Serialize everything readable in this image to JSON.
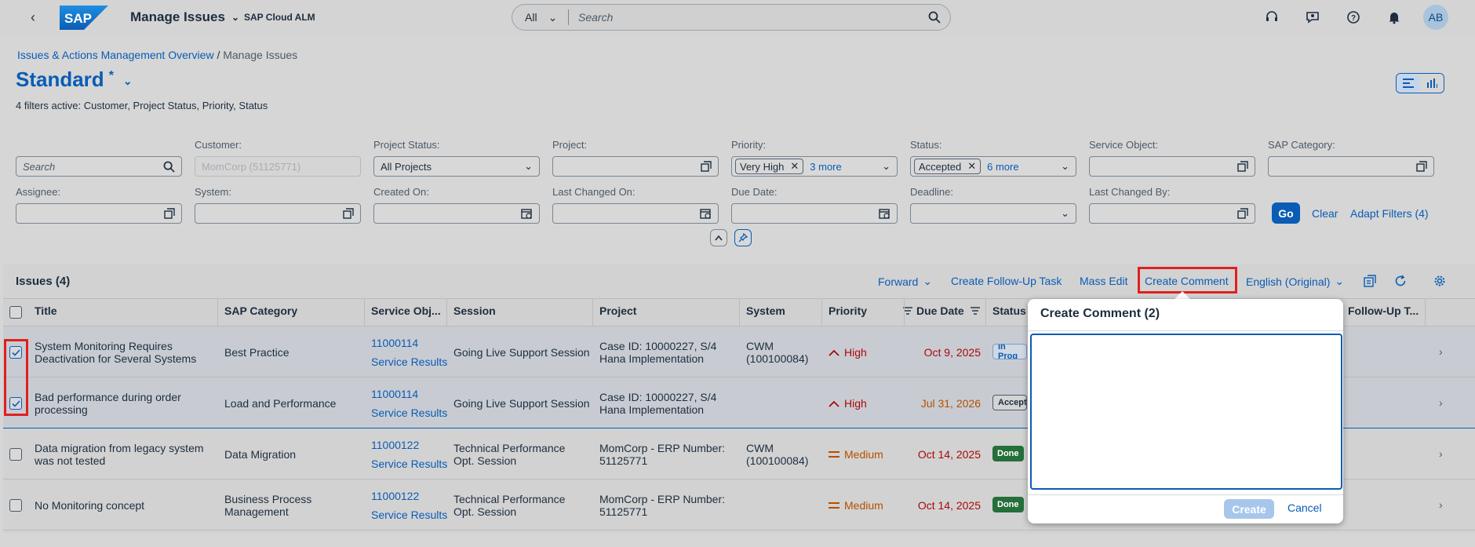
{
  "shell": {
    "logo": "SAP",
    "app_title": "Manage Issues",
    "subtitle": "SAP Cloud ALM",
    "search_scope": "All",
    "search_placeholder": "Search",
    "avatar_initials": "AB",
    "icons": [
      "headset-icon",
      "feedback-icon",
      "help-icon",
      "notifications-icon"
    ]
  },
  "breadcrumb": {
    "parent": "Issues & Actions Management Overview",
    "separator": "/",
    "current": "Manage Issues"
  },
  "variant": {
    "name": "Standard",
    "modified_marker": "*"
  },
  "filters_active_text": "4 filters active: Customer, Project Status, Priority, Status",
  "filters": {
    "search_placeholder": "Search",
    "customer_label": "Customer:",
    "customer_value": "MomCorp (51125771)",
    "project_status_label": "Project Status:",
    "project_status_value": "All Projects",
    "project_label": "Project:",
    "priority_label": "Priority:",
    "priority_token": "Very High",
    "priority_more": "3 more",
    "status_label": "Status:",
    "status_token": "Accepted",
    "status_more": "6 more",
    "service_object_label": "Service Object:",
    "sap_category_label": "SAP Category:",
    "assignee_label": "Assignee:",
    "system_label": "System:",
    "created_on_label": "Created On:",
    "last_changed_on_label": "Last Changed On:",
    "due_date_label": "Due Date:",
    "deadline_label": "Deadline:",
    "last_changed_by_label": "Last Changed By:",
    "go": "Go",
    "clear": "Clear",
    "adapt": "Adapt Filters (4)"
  },
  "table": {
    "title": "Issues (4)",
    "toolbar": {
      "forward": "Forward",
      "create_follow_up": "Create Follow-Up Task",
      "mass_edit": "Mass Edit",
      "create_comment": "Create Comment",
      "language": "English (Original)"
    },
    "columns": {
      "title": "Title",
      "sap_category": "SAP Category",
      "service_obj": "Service Obj...",
      "session": "Session",
      "project": "Project",
      "system": "System",
      "priority": "Priority",
      "due_date": "Due Date",
      "status": "Status",
      "follow_up": "Follow-Up T..."
    },
    "rows": [
      {
        "title_1": "System Monitoring Requires",
        "title_2": "Deactivation for Several Systems",
        "category": "Best Practice",
        "category_2": "",
        "so_id": "11000114",
        "so_link": "Service Results",
        "session_1": "Going Live Support Session",
        "session_2": "",
        "project_1": "Case ID: 10000227, S/4",
        "project_2": "Hana Implementation",
        "system_1": "CWM",
        "system_2": "(100100084)",
        "priority": "High",
        "due": "Oct 9, 2025",
        "status": "In Prog"
      },
      {
        "title_1": "Bad performance during order",
        "title_2": "processing",
        "category": "Load and Performance",
        "category_2": "",
        "so_id": "11000114",
        "so_link": "Service Results",
        "session_1": "Going Live Support Session",
        "session_2": "",
        "project_1": "Case ID: 10000227, S/4",
        "project_2": "Hana Implementation",
        "system_1": "",
        "system_2": "",
        "priority": "High",
        "due": "Jul 31, 2026",
        "status": "Accept"
      },
      {
        "title_1": "Data migration from legacy system",
        "title_2": "was not tested",
        "category": "Data Migration",
        "category_2": "",
        "so_id": "11000122",
        "so_link": "Service Results",
        "session_1": "Technical Performance",
        "session_2": "Opt. Session",
        "project_1": "MomCorp - ERP Number:",
        "project_2": "51125771",
        "system_1": "CWM",
        "system_2": "(100100084)",
        "priority": "Medium",
        "due": "Oct 14, 2025",
        "status": "Done"
      },
      {
        "title_1": "No Monitoring concept",
        "title_2": "",
        "category": "Business Process",
        "category_2": "Management",
        "so_id": "11000122",
        "so_link": "Service Results",
        "session_1": "Technical Performance",
        "session_2": "Opt. Session",
        "project_1": "MomCorp - ERP Number:",
        "project_2": "51125771",
        "system_1": "",
        "system_2": "",
        "priority": "Medium",
        "due": "Oct 14, 2025",
        "status": "Done"
      }
    ]
  },
  "popover": {
    "title": "Create Comment (2)",
    "create": "Create",
    "cancel": "Cancel"
  },
  "colors": {
    "brand": "#0a5cb5",
    "high": "#aa0808",
    "medium": "#b44f00",
    "done": "#256f3a",
    "highlight": "#e02020"
  }
}
